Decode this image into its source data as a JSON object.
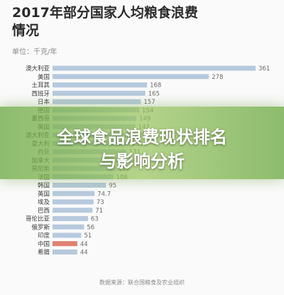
{
  "chart_data": {
    "type": "bar",
    "orientation": "horizontal",
    "title": "2017年部分国家人均粮食浪费情况",
    "unit": "单位：千克/年",
    "source": "数据来源：联合国粮食及农业组织",
    "categories": [
      "澳大利亚",
      "美国",
      "土耳其",
      "西班牙",
      "日本",
      "德国",
      "墨西哥",
      "英国",
      "澳大利亚",
      "意大利",
      "约旦",
      "加拿大",
      "突尼斯",
      "法国",
      "韩国",
      "英国",
      "埃及",
      "巴西",
      "哥伦比亚",
      "俄罗斯",
      "印度",
      "中国",
      "希腊"
    ],
    "values": [
      361,
      278,
      168,
      165,
      157,
      154,
      149,
      147,
      139,
      136,
      131,
      122,
      112,
      108,
      95,
      74.7,
      73,
      71,
      63,
      56,
      51,
      44,
      44
    ],
    "value_labels": [
      "361",
      "278",
      "168",
      "165",
      "157",
      "154",
      "149",
      "147",
      "139",
      "136",
      "131",
      "122",
      "112",
      "108",
      "95",
      "74.7",
      "73",
      "71",
      "63",
      "56",
      "51",
      "44",
      "44"
    ],
    "highlight": "中国",
    "colors": {
      "bar": "#b7c9dd",
      "highlight": "#e08070"
    },
    "xlim": [
      0,
      361
    ]
  },
  "overlay": {
    "line1": "全球食品浪费现状排名",
    "line2": "与影响分析"
  }
}
